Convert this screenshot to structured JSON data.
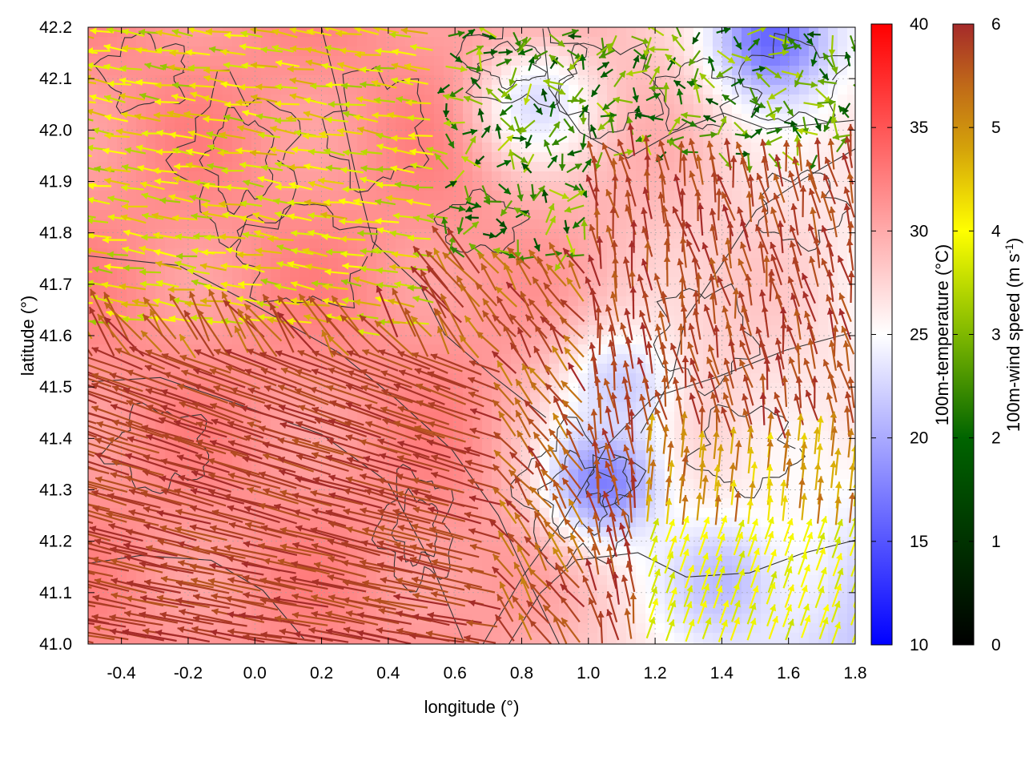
{
  "chart_data": {
    "type": "heatmap",
    "overlays": [
      "vector field (wind arrows)",
      "contour lines"
    ],
    "xlabel": "longitude (°)",
    "ylabel": "latitude (°)",
    "xlim": [
      -0.5,
      1.8
    ],
    "ylim": [
      41.0,
      42.2
    ],
    "x_ticks": [
      "-0.4",
      "-0.2",
      "0.0",
      "0.2",
      "0.4",
      "0.6",
      "0.8",
      "1.0",
      "1.2",
      "1.4",
      "1.6",
      "1.8"
    ],
    "x_tick_values": [
      -0.4,
      -0.2,
      0.0,
      0.2,
      0.4,
      0.6,
      0.8,
      1.0,
      1.2,
      1.4,
      1.6,
      1.8
    ],
    "y_ticks": [
      "41.0",
      "41.1",
      "41.2",
      "41.3",
      "41.4",
      "41.5",
      "41.6",
      "41.7",
      "41.8",
      "41.9",
      "42.0",
      "42.1",
      "42.2"
    ],
    "y_tick_values": [
      41.0,
      41.1,
      41.2,
      41.3,
      41.4,
      41.5,
      41.6,
      41.7,
      41.8,
      41.9,
      42.0,
      42.1,
      42.2
    ],
    "grid": true,
    "temperature_colorbar": {
      "label": "100m-temperature (°C)",
      "range": [
        10,
        40
      ],
      "ticks": [
        "10",
        "15",
        "20",
        "25",
        "30",
        "35",
        "40"
      ],
      "tick_values": [
        10,
        15,
        20,
        25,
        30,
        35,
        40
      ],
      "colors": [
        "#0000ff",
        "#ffffff",
        "#ff0000"
      ]
    },
    "wind_colorbar": {
      "label": "100m-wind speed (m s-1)",
      "label_main": "100m-wind speed (m s",
      "label_sup": "-1",
      "label_end": ")",
      "range": [
        0,
        6
      ],
      "ticks": [
        "0",
        "1",
        "2",
        "3",
        "4",
        "5",
        "6"
      ],
      "tick_values": [
        0,
        1,
        2,
        3,
        4,
        5,
        6
      ],
      "colors": [
        "#000000",
        "#006400",
        "#7fb800",
        "#ffff00",
        "#d4a20a",
        "#c06a18",
        "#a52a2a"
      ]
    },
    "temperature_field": {
      "description": "warm (~30-33 °C) west/north, cooler (~18-24 °C) southeast and far NE corner",
      "cool_regions": [
        {
          "lon": 1.05,
          "lat": 41.32,
          "temp": 17
        },
        {
          "lon": 1.55,
          "lat": 42.18,
          "temp": 16
        },
        {
          "lon": 1.4,
          "lat": 41.12,
          "temp": 21
        },
        {
          "lon": 1.1,
          "lat": 41.5,
          "temp": 22
        },
        {
          "lon": 0.85,
          "lat": 42.05,
          "temp": 23
        }
      ]
    },
    "wind_field_regions": [
      {
        "region": "southwest lowland",
        "direction": "from east-southeast, blowing west",
        "speed": "~5.5-6"
      },
      {
        "region": "east-central",
        "direction": "blowing north",
        "speed": "~5.5-6"
      },
      {
        "region": "southeast corner",
        "direction": "blowing north-northeast",
        "speed": "~3.5-4"
      },
      {
        "region": "north-central hills",
        "direction": "variable, weak",
        "speed": "~2-3"
      },
      {
        "region": "northwest",
        "direction": "blowing west",
        "speed": "~3.5-4.5"
      }
    ]
  }
}
